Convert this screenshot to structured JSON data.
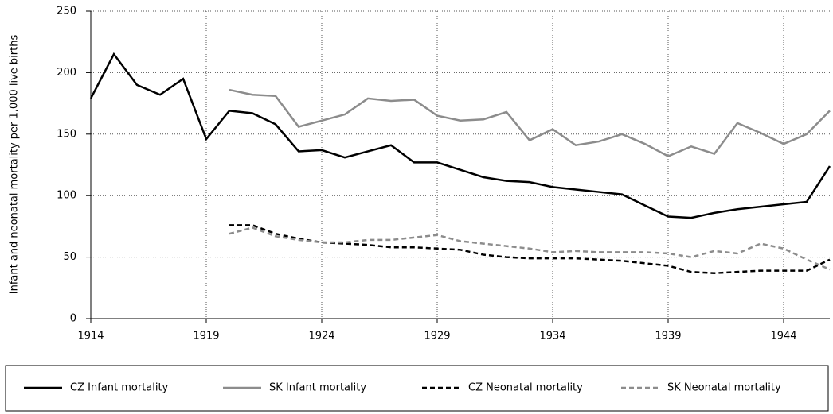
{
  "chart_data": {
    "type": "line",
    "y_label": "Infant and neonatal mortality per 1,000 live births",
    "x": [
      1914,
      1915,
      1916,
      1917,
      1918,
      1919,
      1920,
      1921,
      1922,
      1923,
      1924,
      1925,
      1926,
      1927,
      1928,
      1929,
      1930,
      1931,
      1932,
      1933,
      1934,
      1935,
      1936,
      1937,
      1938,
      1939,
      1940,
      1941,
      1942,
      1943,
      1944,
      1945,
      1946
    ],
    "xlim": [
      1914,
      1946
    ],
    "xticks": [
      1914,
      1919,
      1924,
      1929,
      1934,
      1939,
      1944
    ],
    "ylim": [
      0,
      250
    ],
    "yticks": [
      0,
      50,
      100,
      150,
      200,
      250
    ],
    "grid": true,
    "legend": "bottom",
    "series": [
      {
        "name": "CZ Infant mortality",
        "color": "#000000",
        "dash": "solid",
        "values": [
          179,
          215,
          190,
          182,
          195,
          146,
          169,
          167,
          158,
          136,
          137,
          131,
          136,
          141,
          127,
          127,
          121,
          115,
          112,
          111,
          107,
          105,
          103,
          101,
          92,
          83,
          82,
          86,
          89,
          91,
          93,
          95,
          124
        ]
      },
      {
        "name": "SK Infant mortality",
        "color": "#8c8c8c",
        "dash": "solid",
        "values": [
          null,
          null,
          null,
          null,
          null,
          null,
          186,
          182,
          181,
          156,
          161,
          166,
          179,
          177,
          178,
          165,
          161,
          162,
          168,
          145,
          154,
          141,
          144,
          150,
          142,
          132,
          140,
          134,
          159,
          151,
          142,
          150,
          169
        ]
      },
      {
        "name": "CZ Neonatal mortality",
        "color": "#000000",
        "dash": "dashed",
        "values": [
          null,
          null,
          null,
          null,
          null,
          null,
          76,
          76,
          69,
          65,
          62,
          61,
          60,
          58,
          58,
          57,
          56,
          52,
          50,
          49,
          49,
          49,
          48,
          47,
          45,
          43,
          38,
          37,
          38,
          39,
          39,
          39,
          48
        ]
      },
      {
        "name": "SK Neonatal mortality",
        "color": "#8c8c8c",
        "dash": "dashed",
        "values": [
          null,
          null,
          null,
          null,
          null,
          null,
          69,
          74,
          67,
          64,
          62,
          62,
          64,
          64,
          66,
          68,
          63,
          61,
          59,
          57,
          54,
          55,
          54,
          54,
          54,
          53,
          50,
          55,
          53,
          61,
          57,
          48,
          40
        ]
      }
    ]
  }
}
